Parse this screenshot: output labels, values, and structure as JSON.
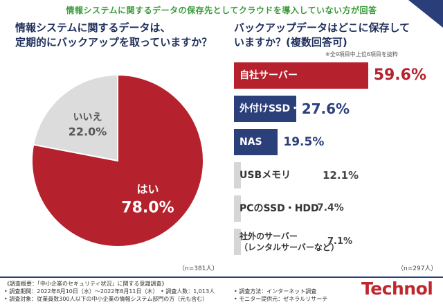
{
  "banner": "情報システムに関するデータの保存先としてクラウドを導入していない方が回答",
  "left_question": [
    "情報システムに関するデータは、",
    "定期的にバックアップを取っていますか？"
  ],
  "right_question": [
    "バックアップデータはどこに保存して",
    "いますか？(複数回答可)"
  ],
  "right_note": "※全9項目中上位6項目を抜粋",
  "left_n": "（n=381人）",
  "right_n": "（n=297人）",
  "chart_data": [
    {
      "type": "pie",
      "slices": [
        {
          "label": "はい",
          "value": 78.0,
          "value_text": "78.0%",
          "color": "#b5222d"
        },
        {
          "label": "いいえ",
          "value": 22.0,
          "value_text": "22.0%",
          "color": "#dcdcdc"
        }
      ]
    },
    {
      "type": "bar",
      "orientation": "horizontal",
      "categories": [
        "自社サーバー",
        "外付けSSD・HDD",
        "NAS",
        "USBメモリ",
        "PCのSSD・HDD",
        "社外のサーバー（レンタルサーバーなど）"
      ],
      "values": [
        59.6,
        27.6,
        19.5,
        12.1,
        7.4,
        7.1
      ],
      "value_texts": [
        "59.6%",
        "27.6%",
        "19.5%",
        "12.1%",
        "7.4%",
        "7.1%"
      ],
      "colors": [
        "#b5222d",
        "#2b3f7a",
        "#2b3f7a",
        "#d6d6d6",
        "#d6d6d6",
        "#d6d6d6"
      ]
    }
  ],
  "bar_label_lines": [
    [
      "自社サーバー"
    ],
    [
      "外付けSSD・HDD"
    ],
    [
      "NAS"
    ],
    [
      "USBメモリ"
    ],
    [
      "PCのSSD・HDD"
    ],
    [
      "社外のサーバー",
      "（レンタルサーバーなど）"
    ]
  ],
  "footer": {
    "line1": "《調査概要：「中小企業のセキュリティ状況」に関する意識調査》",
    "line2": "• 調査期間：2022年8月10日（水）～2022年8月11日（木）",
    "line3": "• 調査対象：従業員数300人以下の中小企業の情報システム部門の方（元も含む）",
    "count": "• 調査人数：1,013人",
    "method": "• 調査方法：インターネット調査",
    "provider": "• モニター提供元：ゼネラルリサーチ"
  },
  "brand": "Technol"
}
